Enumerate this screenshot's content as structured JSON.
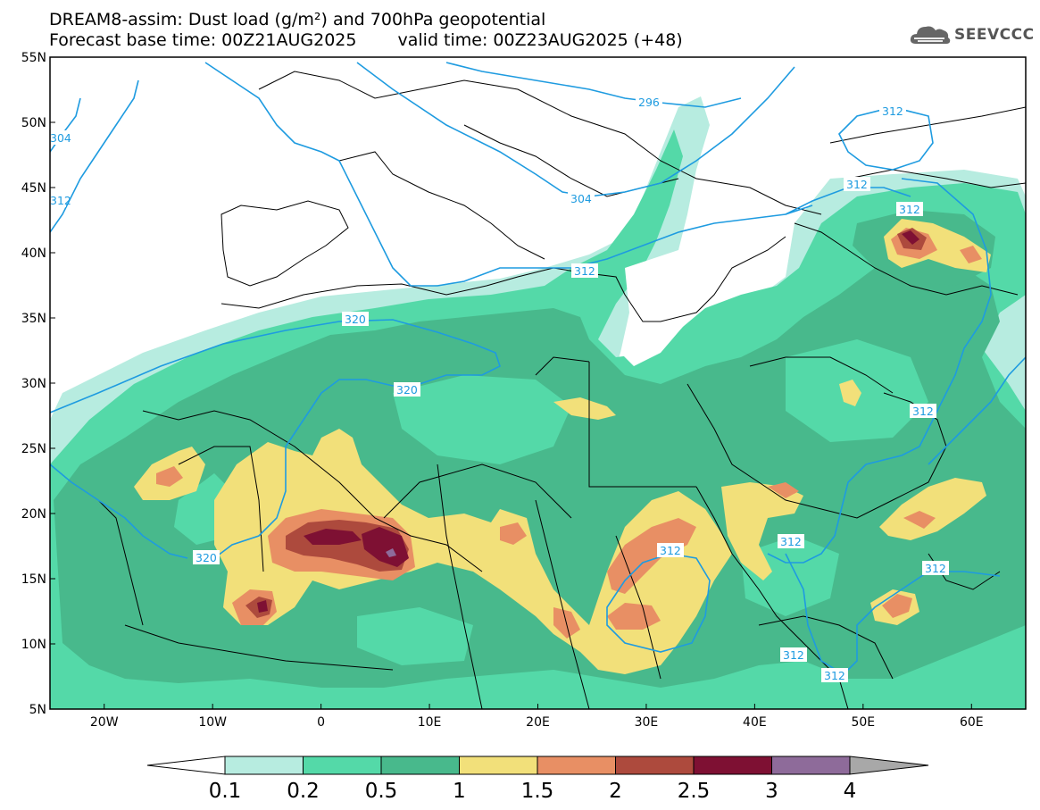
{
  "title": {
    "line1": "DREAM8-assim: Dust load (g/m²) and 700hPa geopotential",
    "base_time": "Forecast base time: 00Z21AUG2025",
    "valid_time": "valid time: 00Z23AUG2025 (+48)"
  },
  "logo": {
    "text": "SEEVCCC",
    "icon": "cloud-icon"
  },
  "map": {
    "lat_ticks": [
      "55N",
      "50N",
      "45N",
      "40N",
      "35N",
      "30N",
      "25N",
      "20N",
      "15N",
      "10N",
      "5N"
    ],
    "lon_ticks": [
      "20W",
      "10W",
      "0",
      "10E",
      "20E",
      "30E",
      "40E",
      "50E",
      "60E"
    ],
    "lat_range": [
      5,
      55
    ],
    "lon_range": [
      -25,
      65
    ],
    "contour_labels": [
      "296",
      "312",
      "312",
      "304",
      "312",
      "320",
      "320",
      "320",
      "312",
      "312",
      "312",
      "312",
      "312",
      "312",
      "312",
      "312",
      "304",
      "312"
    ]
  },
  "colorbar": {
    "labels": [
      "0.1",
      "0.2",
      "0.5",
      "1",
      "1.5",
      "2",
      "2.5",
      "3",
      "4"
    ],
    "colors": {
      "below": "#ffffff",
      "bins": [
        "#b7ece0",
        "#54d9a8",
        "#48b98c",
        "#f2e07a",
        "#e88f64",
        "#ad4a3d",
        "#7e1033",
        "#8e6b9a"
      ],
      "above": "#a8a8a8"
    }
  }
}
